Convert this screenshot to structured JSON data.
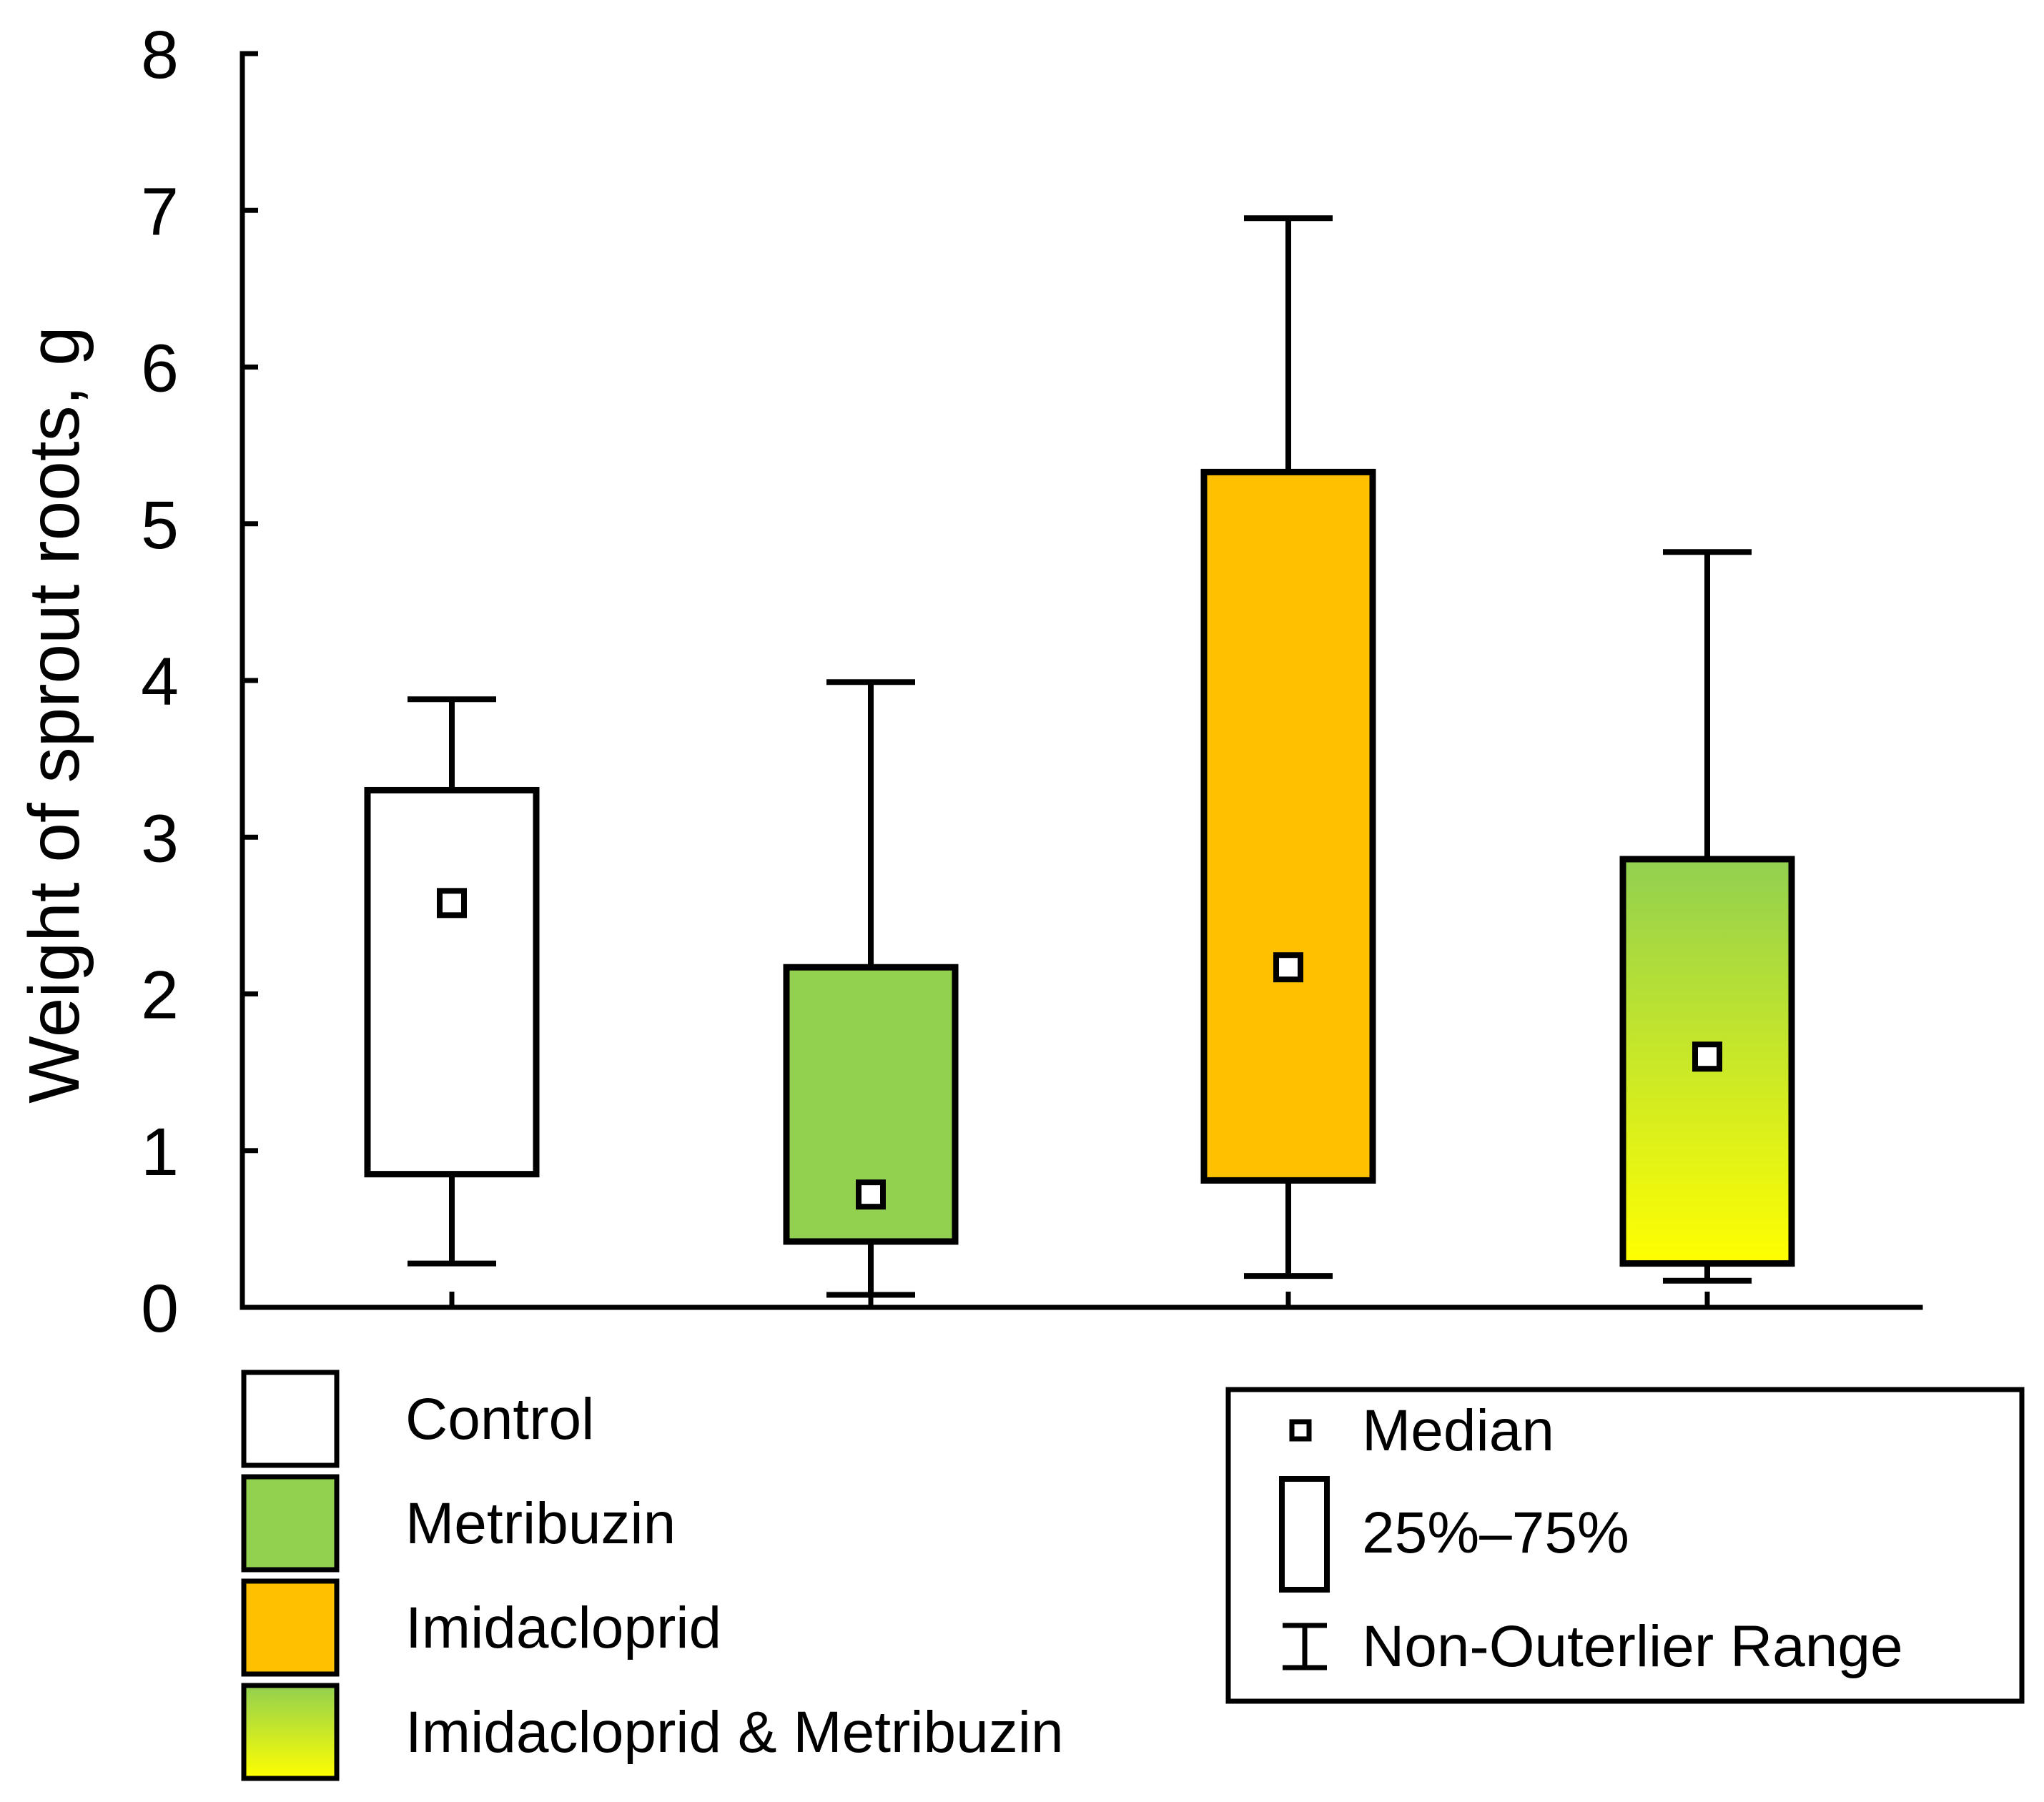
{
  "chart_data": {
    "type": "box",
    "title": "",
    "xlabel": "",
    "ylabel": "Weight of sprout roots, g",
    "ylim": [
      0,
      8
    ],
    "yticks": [
      "0",
      "1",
      "2",
      "3",
      "4",
      "5",
      "6",
      "7",
      "8"
    ],
    "grid": false,
    "groups": [
      {
        "name": "Control",
        "fill": "#ffffff",
        "gradient": null,
        "whisker_low": 0.28,
        "q1": 0.85,
        "median": 2.58,
        "q3": 3.3,
        "whisker_high": 3.88
      },
      {
        "name": "Metribuzin",
        "fill": "#92d050",
        "gradient": null,
        "whisker_low": 0.08,
        "q1": 0.42,
        "median": 0.72,
        "q3": 2.17,
        "whisker_high": 3.99
      },
      {
        "name": "Imidacloprid",
        "fill": "#ffc000",
        "gradient": null,
        "whisker_low": 0.2,
        "q1": 0.81,
        "median": 2.17,
        "q3": 5.33,
        "whisker_high": 6.95
      },
      {
        "name": "Imidacloprid & Metribuzin",
        "fill": "#92d050",
        "gradient": [
          "#92d050",
          "#ffff00"
        ],
        "whisker_low": 0.17,
        "q1": 0.28,
        "median": 1.6,
        "q3": 2.86,
        "whisker_high": 4.82
      }
    ],
    "legend_groups": [
      {
        "label": "Control",
        "fill": "#ffffff",
        "gradient": null
      },
      {
        "label": "Metribuzin",
        "fill": "#92d050",
        "gradient": null
      },
      {
        "label": "Imidacloprid",
        "fill": "#ffc000",
        "gradient": null
      },
      {
        "label": "Imidacloprid & Metribuzin",
        "fill": "#92d050",
        "gradient": [
          "#92d050",
          "#ffff00"
        ]
      }
    ],
    "legend_symbols": {
      "median": "Median",
      "box": "25%–75%",
      "whisker": "Non-Outerlier Range"
    },
    "legend_position": "bottom"
  }
}
